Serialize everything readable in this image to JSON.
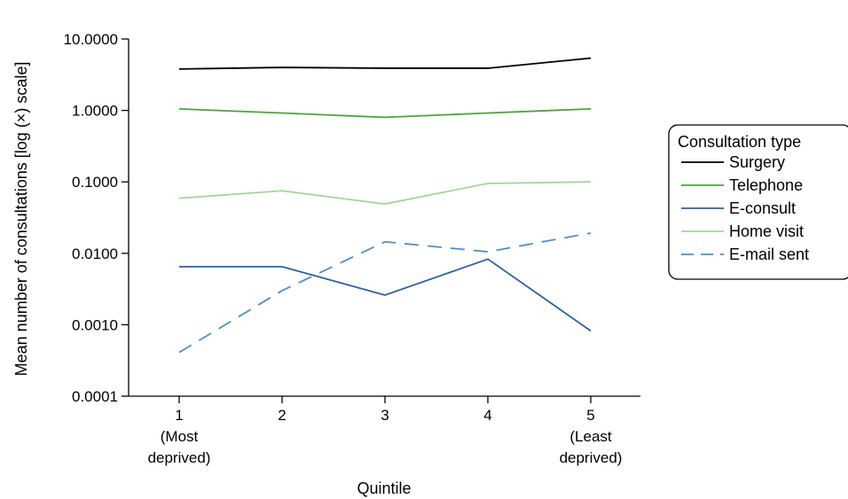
{
  "chart_data": {
    "type": "line",
    "ylabel": "Mean number of consultations [log (×) scale]",
    "xlabel": "Quintile",
    "y_scale": "log",
    "ylim": [
      0.0001,
      10
    ],
    "y_ticks": [
      {
        "value": 10,
        "label": "10.0000"
      },
      {
        "value": 1,
        "label": "1.0000"
      },
      {
        "value": 0.1,
        "label": "0.1000"
      },
      {
        "value": 0.01,
        "label": "0.0100"
      },
      {
        "value": 0.001,
        "label": "0.0010"
      },
      {
        "value": 0.0001,
        "label": "0.0001"
      }
    ],
    "x": [
      1,
      2,
      3,
      4,
      5
    ],
    "x_ticks": [
      {
        "value": 1,
        "lines": [
          "1",
          "(Most",
          "deprived)"
        ]
      },
      {
        "value": 2,
        "lines": [
          "2"
        ]
      },
      {
        "value": 3,
        "lines": [
          "3"
        ]
      },
      {
        "value": 4,
        "lines": [
          "4"
        ]
      },
      {
        "value": 5,
        "lines": [
          "5",
          "(Least",
          "deprived)"
        ]
      }
    ],
    "legend_title": "Consultation type",
    "legend_position": "right",
    "series": [
      {
        "name": "Surgery",
        "color": "#000000",
        "dash": "solid",
        "values": [
          3.8,
          4.0,
          3.9,
          3.9,
          5.4
        ]
      },
      {
        "name": "Telephone",
        "color": "#4aa63a",
        "dash": "solid",
        "values": [
          1.05,
          0.92,
          0.8,
          0.92,
          1.05
        ]
      },
      {
        "name": "E-consult",
        "color": "#2a5fa8",
        "dash": "solid",
        "values": [
          0.0065,
          0.0065,
          0.0026,
          0.0083,
          0.00082
        ]
      },
      {
        "name": "Home visit",
        "color": "#a3d696",
        "dash": "solid",
        "values": [
          0.059,
          0.075,
          0.049,
          0.095,
          0.1
        ]
      },
      {
        "name": "E-mail sent",
        "color": "#4a8fcf",
        "dash": "dashed",
        "values": [
          0.00041,
          0.003,
          0.0145,
          0.0105,
          0.0192
        ]
      }
    ]
  }
}
